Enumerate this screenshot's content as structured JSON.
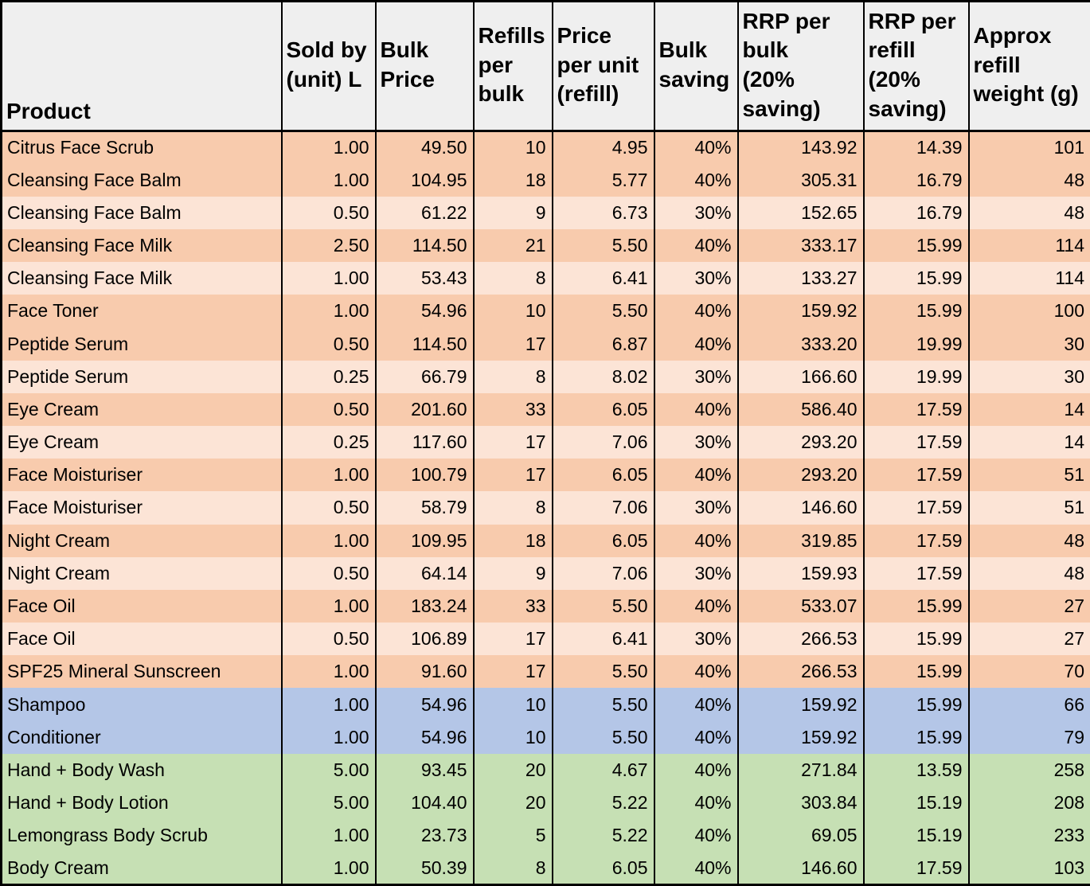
{
  "colors": {
    "orange-dark": "#F8CBAD",
    "orange-light": "#FCE4D6",
    "blue": "#B4C6E7",
    "green": "#C6E0B4",
    "header-bg": "#EFEFEF",
    "border": "#000000"
  },
  "table": {
    "header": [
      "Product",
      "Sold by\n(unit) L",
      "Bulk\nPrice",
      "Refills\nper\nbulk",
      "Price\nper unit\n(refill)",
      "Bulk\nsaving",
      "RRP per\nbulk\n(20%\nsaving)",
      "RRP per\nrefill\n(20%\nsaving)",
      "Approx\nrefill\nweight (g)"
    ],
    "rows": [
      {
        "product": "Citrus Face Scrub",
        "sold_by": "1.00",
        "bulk_price": "49.50",
        "refills": "10",
        "price_per_refill": "4.95",
        "bulk_saving": "40%",
        "rrp_bulk": "143.92",
        "rrp_refill": "14.39",
        "weight": "101",
        "band": "orange-dark"
      },
      {
        "product": "Cleansing Face Balm",
        "sold_by": "1.00",
        "bulk_price": "104.95",
        "refills": "18",
        "price_per_refill": "5.77",
        "bulk_saving": "40%",
        "rrp_bulk": "305.31",
        "rrp_refill": "16.79",
        "weight": "48",
        "band": "orange-dark"
      },
      {
        "product": "Cleansing Face Balm",
        "sold_by": "0.50",
        "bulk_price": "61.22",
        "refills": "9",
        "price_per_refill": "6.73",
        "bulk_saving": "30%",
        "rrp_bulk": "152.65",
        "rrp_refill": "16.79",
        "weight": "48",
        "band": "orange-light"
      },
      {
        "product": "Cleansing Face Milk",
        "sold_by": "2.50",
        "bulk_price": "114.50",
        "refills": "21",
        "price_per_refill": "5.50",
        "bulk_saving": "40%",
        "rrp_bulk": "333.17",
        "rrp_refill": "15.99",
        "weight": "114",
        "band": "orange-dark"
      },
      {
        "product": "Cleansing Face Milk",
        "sold_by": "1.00",
        "bulk_price": "53.43",
        "refills": "8",
        "price_per_refill": "6.41",
        "bulk_saving": "30%",
        "rrp_bulk": "133.27",
        "rrp_refill": "15.99",
        "weight": "114",
        "band": "orange-light"
      },
      {
        "product": "Face Toner",
        "sold_by": "1.00",
        "bulk_price": "54.96",
        "refills": "10",
        "price_per_refill": "5.50",
        "bulk_saving": "40%",
        "rrp_bulk": "159.92",
        "rrp_refill": "15.99",
        "weight": "100",
        "band": "orange-dark"
      },
      {
        "product": "Peptide Serum",
        "sold_by": "0.50",
        "bulk_price": "114.50",
        "refills": "17",
        "price_per_refill": "6.87",
        "bulk_saving": "40%",
        "rrp_bulk": "333.20",
        "rrp_refill": "19.99",
        "weight": "30",
        "band": "orange-dark"
      },
      {
        "product": "Peptide Serum",
        "sold_by": "0.25",
        "bulk_price": "66.79",
        "refills": "8",
        "price_per_refill": "8.02",
        "bulk_saving": "30%",
        "rrp_bulk": "166.60",
        "rrp_refill": "19.99",
        "weight": "30",
        "band": "orange-light"
      },
      {
        "product": "Eye Cream",
        "sold_by": "0.50",
        "bulk_price": "201.60",
        "refills": "33",
        "price_per_refill": "6.05",
        "bulk_saving": "40%",
        "rrp_bulk": "586.40",
        "rrp_refill": "17.59",
        "weight": "14",
        "band": "orange-dark"
      },
      {
        "product": "Eye Cream",
        "sold_by": "0.25",
        "bulk_price": "117.60",
        "refills": "17",
        "price_per_refill": "7.06",
        "bulk_saving": "30%",
        "rrp_bulk": "293.20",
        "rrp_refill": "17.59",
        "weight": "14",
        "band": "orange-light"
      },
      {
        "product": "Face Moisturiser",
        "sold_by": "1.00",
        "bulk_price": "100.79",
        "refills": "17",
        "price_per_refill": "6.05",
        "bulk_saving": "40%",
        "rrp_bulk": "293.20",
        "rrp_refill": "17.59",
        "weight": "51",
        "band": "orange-dark"
      },
      {
        "product": "Face Moisturiser",
        "sold_by": "0.50",
        "bulk_price": "58.79",
        "refills": "8",
        "price_per_refill": "7.06",
        "bulk_saving": "30%",
        "rrp_bulk": "146.60",
        "rrp_refill": "17.59",
        "weight": "51",
        "band": "orange-light"
      },
      {
        "product": "Night Cream",
        "sold_by": "1.00",
        "bulk_price": "109.95",
        "refills": "18",
        "price_per_refill": "6.05",
        "bulk_saving": "40%",
        "rrp_bulk": "319.85",
        "rrp_refill": "17.59",
        "weight": "48",
        "band": "orange-dark"
      },
      {
        "product": "Night Cream",
        "sold_by": "0.50",
        "bulk_price": "64.14",
        "refills": "9",
        "price_per_refill": "7.06",
        "bulk_saving": "30%",
        "rrp_bulk": "159.93",
        "rrp_refill": "17.59",
        "weight": "48",
        "band": "orange-light"
      },
      {
        "product": "Face Oil",
        "sold_by": "1.00",
        "bulk_price": "183.24",
        "refills": "33",
        "price_per_refill": "5.50",
        "bulk_saving": "40%",
        "rrp_bulk": "533.07",
        "rrp_refill": "15.99",
        "weight": "27",
        "band": "orange-dark"
      },
      {
        "product": "Face Oil",
        "sold_by": "0.50",
        "bulk_price": "106.89",
        "refills": "17",
        "price_per_refill": "6.41",
        "bulk_saving": "30%",
        "rrp_bulk": "266.53",
        "rrp_refill": "15.99",
        "weight": "27",
        "band": "orange-light"
      },
      {
        "product": "SPF25 Mineral Sunscreen",
        "sold_by": "1.00",
        "bulk_price": "91.60",
        "refills": "17",
        "price_per_refill": "5.50",
        "bulk_saving": "40%",
        "rrp_bulk": "266.53",
        "rrp_refill": "15.99",
        "weight": "70",
        "band": "orange-dark"
      },
      {
        "product": "Shampoo",
        "sold_by": "1.00",
        "bulk_price": "54.96",
        "refills": "10",
        "price_per_refill": "5.50",
        "bulk_saving": "40%",
        "rrp_bulk": "159.92",
        "rrp_refill": "15.99",
        "weight": "66",
        "band": "blue"
      },
      {
        "product": "Conditioner",
        "sold_by": "1.00",
        "bulk_price": "54.96",
        "refills": "10",
        "price_per_refill": "5.50",
        "bulk_saving": "40%",
        "rrp_bulk": "159.92",
        "rrp_refill": "15.99",
        "weight": "79",
        "band": "blue"
      },
      {
        "product": "Hand + Body Wash",
        "sold_by": "5.00",
        "bulk_price": "93.45",
        "refills": "20",
        "price_per_refill": "4.67",
        "bulk_saving": "40%",
        "rrp_bulk": "271.84",
        "rrp_refill": "13.59",
        "weight": "258",
        "band": "green"
      },
      {
        "product": "Hand + Body Lotion",
        "sold_by": "5.00",
        "bulk_price": "104.40",
        "refills": "20",
        "price_per_refill": "5.22",
        "bulk_saving": "40%",
        "rrp_bulk": "303.84",
        "rrp_refill": "15.19",
        "weight": "208",
        "band": "green"
      },
      {
        "product": "Lemongrass Body Scrub",
        "sold_by": "1.00",
        "bulk_price": "23.73",
        "refills": "5",
        "price_per_refill": "5.22",
        "bulk_saving": "40%",
        "rrp_bulk": "69.05",
        "rrp_refill": "15.19",
        "weight": "233",
        "band": "green"
      },
      {
        "product": "Body Cream",
        "sold_by": "1.00",
        "bulk_price": "50.39",
        "refills": "8",
        "price_per_refill": "6.05",
        "bulk_saving": "40%",
        "rrp_bulk": "146.60",
        "rrp_refill": "17.59",
        "weight": "103",
        "band": "green"
      }
    ]
  }
}
